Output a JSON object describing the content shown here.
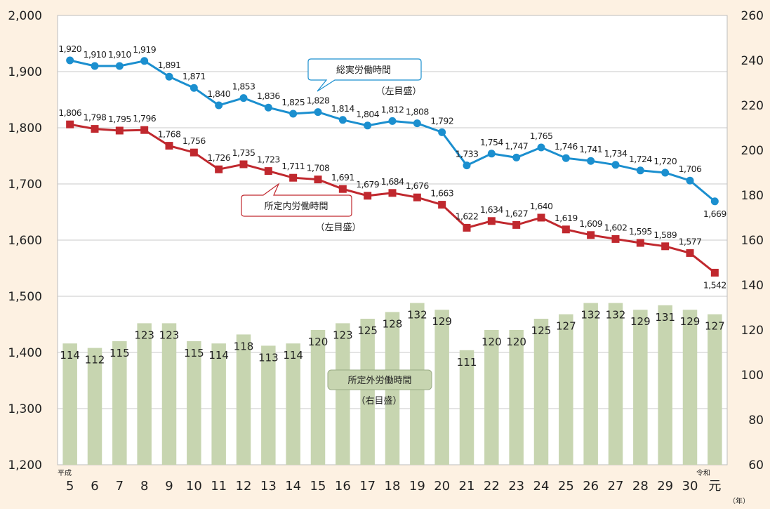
{
  "chart_data": {
    "type": "bar+line",
    "era_start_label": "平成",
    "era_end_label": "令和",
    "x_unit": "（年）",
    "categories": [
      "5",
      "6",
      "7",
      "8",
      "9",
      "10",
      "11",
      "12",
      "13",
      "14",
      "15",
      "16",
      "17",
      "18",
      "19",
      "20",
      "21",
      "22",
      "23",
      "24",
      "25",
      "26",
      "27",
      "28",
      "29",
      "30",
      "元"
    ],
    "left_axis": {
      "ticks": [
        "1,200",
        "1,300",
        "1,400",
        "1,500",
        "1,600",
        "1,700",
        "1,800",
        "1,900",
        "2,000"
      ],
      "ylim": [
        1200,
        2000
      ]
    },
    "right_axis": {
      "ticks": [
        "60",
        "80",
        "100",
        "120",
        "140",
        "160",
        "180",
        "200",
        "220",
        "240",
        "260"
      ],
      "ylim": [
        60,
        260
      ]
    },
    "grid": true,
    "series": [
      {
        "name": "総実労働時間",
        "axis_note": "（左目盛）",
        "kind": "line",
        "marker": "circle",
        "color": "#1b8fcf",
        "values": [
          1920,
          1910,
          1910,
          1919,
          1891,
          1871,
          1840,
          1853,
          1836,
          1825,
          1828,
          1814,
          1804,
          1812,
          1808,
          1792,
          1733,
          1754,
          1747,
          1765,
          1746,
          1741,
          1734,
          1724,
          1720,
          1706,
          1669
        ],
        "labels": [
          "1,920",
          "1,910",
          "1,910",
          "1,919",
          "1,891",
          "1,871",
          "1,840",
          "1,853",
          "1,836",
          "1,825",
          "1,828",
          "1,814",
          "1,804",
          "1,812",
          "1,808",
          "1,792",
          "1,733",
          "1,754",
          "1,747",
          "1,765",
          "1,746",
          "1,741",
          "1,734",
          "1,724",
          "1,720",
          "1,706",
          "1,669"
        ]
      },
      {
        "name": "所定内労働時間",
        "axis_note": "（左目盛）",
        "kind": "line",
        "marker": "square",
        "color": "#c0282e",
        "values": [
          1806,
          1798,
          1795,
          1796,
          1768,
          1756,
          1726,
          1735,
          1723,
          1711,
          1708,
          1691,
          1679,
          1684,
          1676,
          1663,
          1622,
          1634,
          1627,
          1640,
          1619,
          1609,
          1602,
          1595,
          1589,
          1577,
          1542
        ],
        "labels": [
          "1,806",
          "1,798",
          "1,795",
          "1,796",
          "1,768",
          "1,756",
          "1,726",
          "1,735",
          "1,723",
          "1,711",
          "1,708",
          "1,691",
          "1,679",
          "1,684",
          "1,676",
          "1,663",
          "1,622",
          "1,634",
          "1,627",
          "1,640",
          "1,619",
          "1,609",
          "1,602",
          "1,595",
          "1,589",
          "1,577",
          "1,542"
        ]
      },
      {
        "name": "所定外労働時間",
        "axis_note": "（右目盛）",
        "kind": "bar",
        "color": "#c7d5b0",
        "values": [
          114,
          112,
          115,
          123,
          123,
          115,
          114,
          118,
          113,
          114,
          120,
          123,
          125,
          128,
          132,
          129,
          111,
          120,
          120,
          125,
          127,
          132,
          132,
          129,
          131,
          129,
          127
        ],
        "labels": [
          "114",
          "112",
          "115",
          "123",
          "123",
          "115",
          "114",
          "118",
          "113",
          "114",
          "120",
          "123",
          "125",
          "128",
          "132",
          "129",
          "111",
          "120",
          "120",
          "125",
          "127",
          "132",
          "132",
          "129",
          "131",
          "129",
          "127"
        ]
      }
    ],
    "colors": {
      "background": "#fdf1e2",
      "plot": "#ffffff",
      "grid": "#c8c8c8"
    }
  }
}
